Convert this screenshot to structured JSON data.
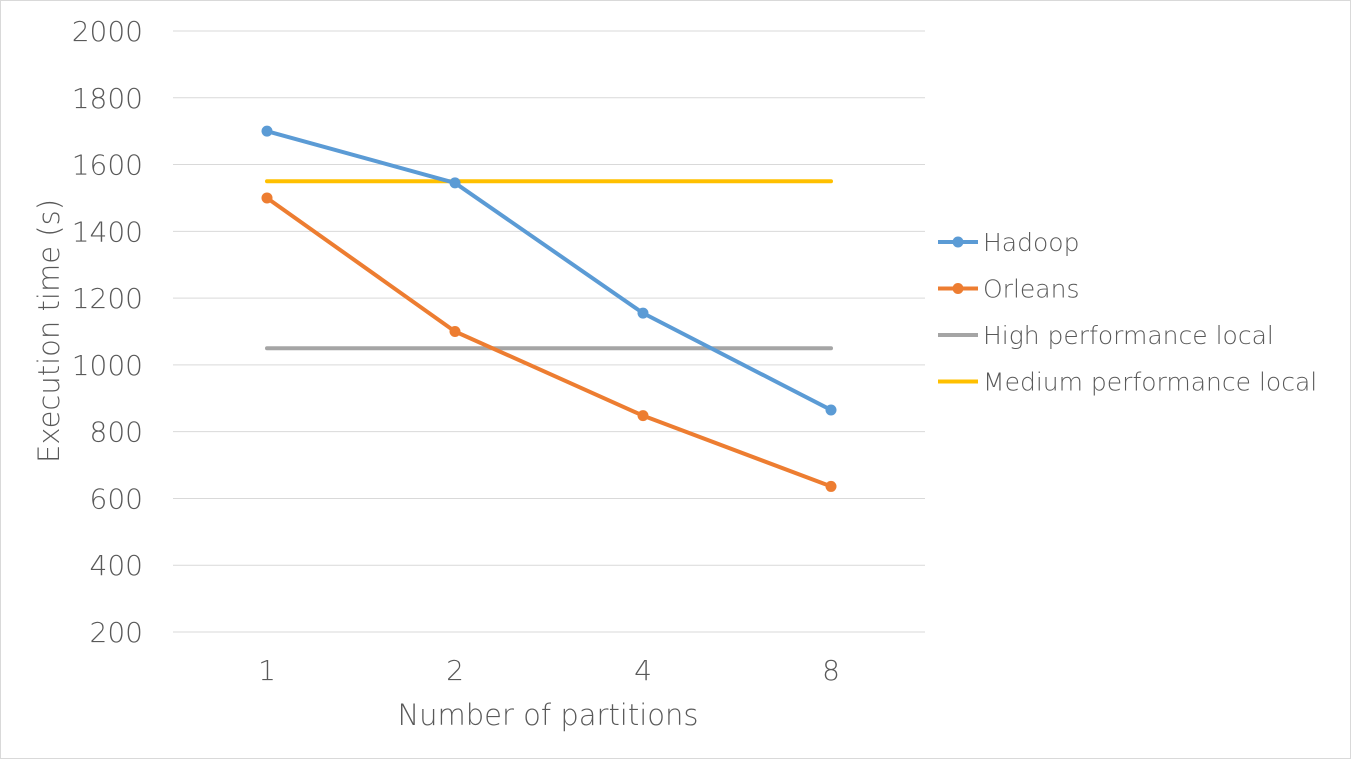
{
  "chart_data": {
    "type": "line",
    "xlabel": "Number of partitions",
    "ylabel": "Execution time (s)",
    "categories": [
      "1",
      "2",
      "4",
      "8"
    ],
    "yticks": [
      200,
      400,
      600,
      800,
      1000,
      1200,
      1400,
      1600,
      1800,
      2000
    ],
    "ylim": [
      200,
      2000
    ],
    "grid": true,
    "legend_position": "right",
    "series": [
      {
        "name": "Hadoop",
        "values": [
          1700,
          1545,
          1155,
          865
        ],
        "color": "#5b9bd5",
        "markers": true
      },
      {
        "name": "Orleans",
        "values": [
          1500,
          1100,
          848,
          636
        ],
        "color": "#ed7d31",
        "markers": true
      },
      {
        "name": "High performance local",
        "values": [
          1050,
          1050,
          1050,
          1050
        ],
        "color": "#a5a5a5",
        "markers": false
      },
      {
        "name": "Medium performance local",
        "values": [
          1550,
          1550,
          1550,
          1550
        ],
        "color": "#ffc000",
        "markers": false
      }
    ]
  }
}
